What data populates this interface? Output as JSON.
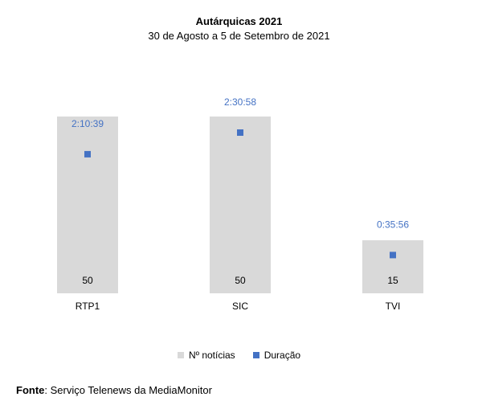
{
  "chart_data": {
    "type": "bar",
    "title": "Autárquicas 2021",
    "subtitle": "30 de Agosto a 5 de Setembro de 2021",
    "categories": [
      "RTP1",
      "SIC",
      "TVI"
    ],
    "series": [
      {
        "name": "Nº notícias",
        "type": "bar",
        "values": [
          50,
          50,
          15
        ],
        "color": "#d9d9d9"
      },
      {
        "name": "Duração",
        "type": "scatter",
        "values": [
          "2:10:39",
          "2:30:58",
          "0:35:56"
        ],
        "seconds": [
          7839,
          9058,
          2156
        ],
        "color": "#4472c4"
      }
    ],
    "legend": "bottom",
    "grid": false
  },
  "source": {
    "label": "Fonte",
    "text": ": Serviço Telenews da MediaMonitor"
  }
}
